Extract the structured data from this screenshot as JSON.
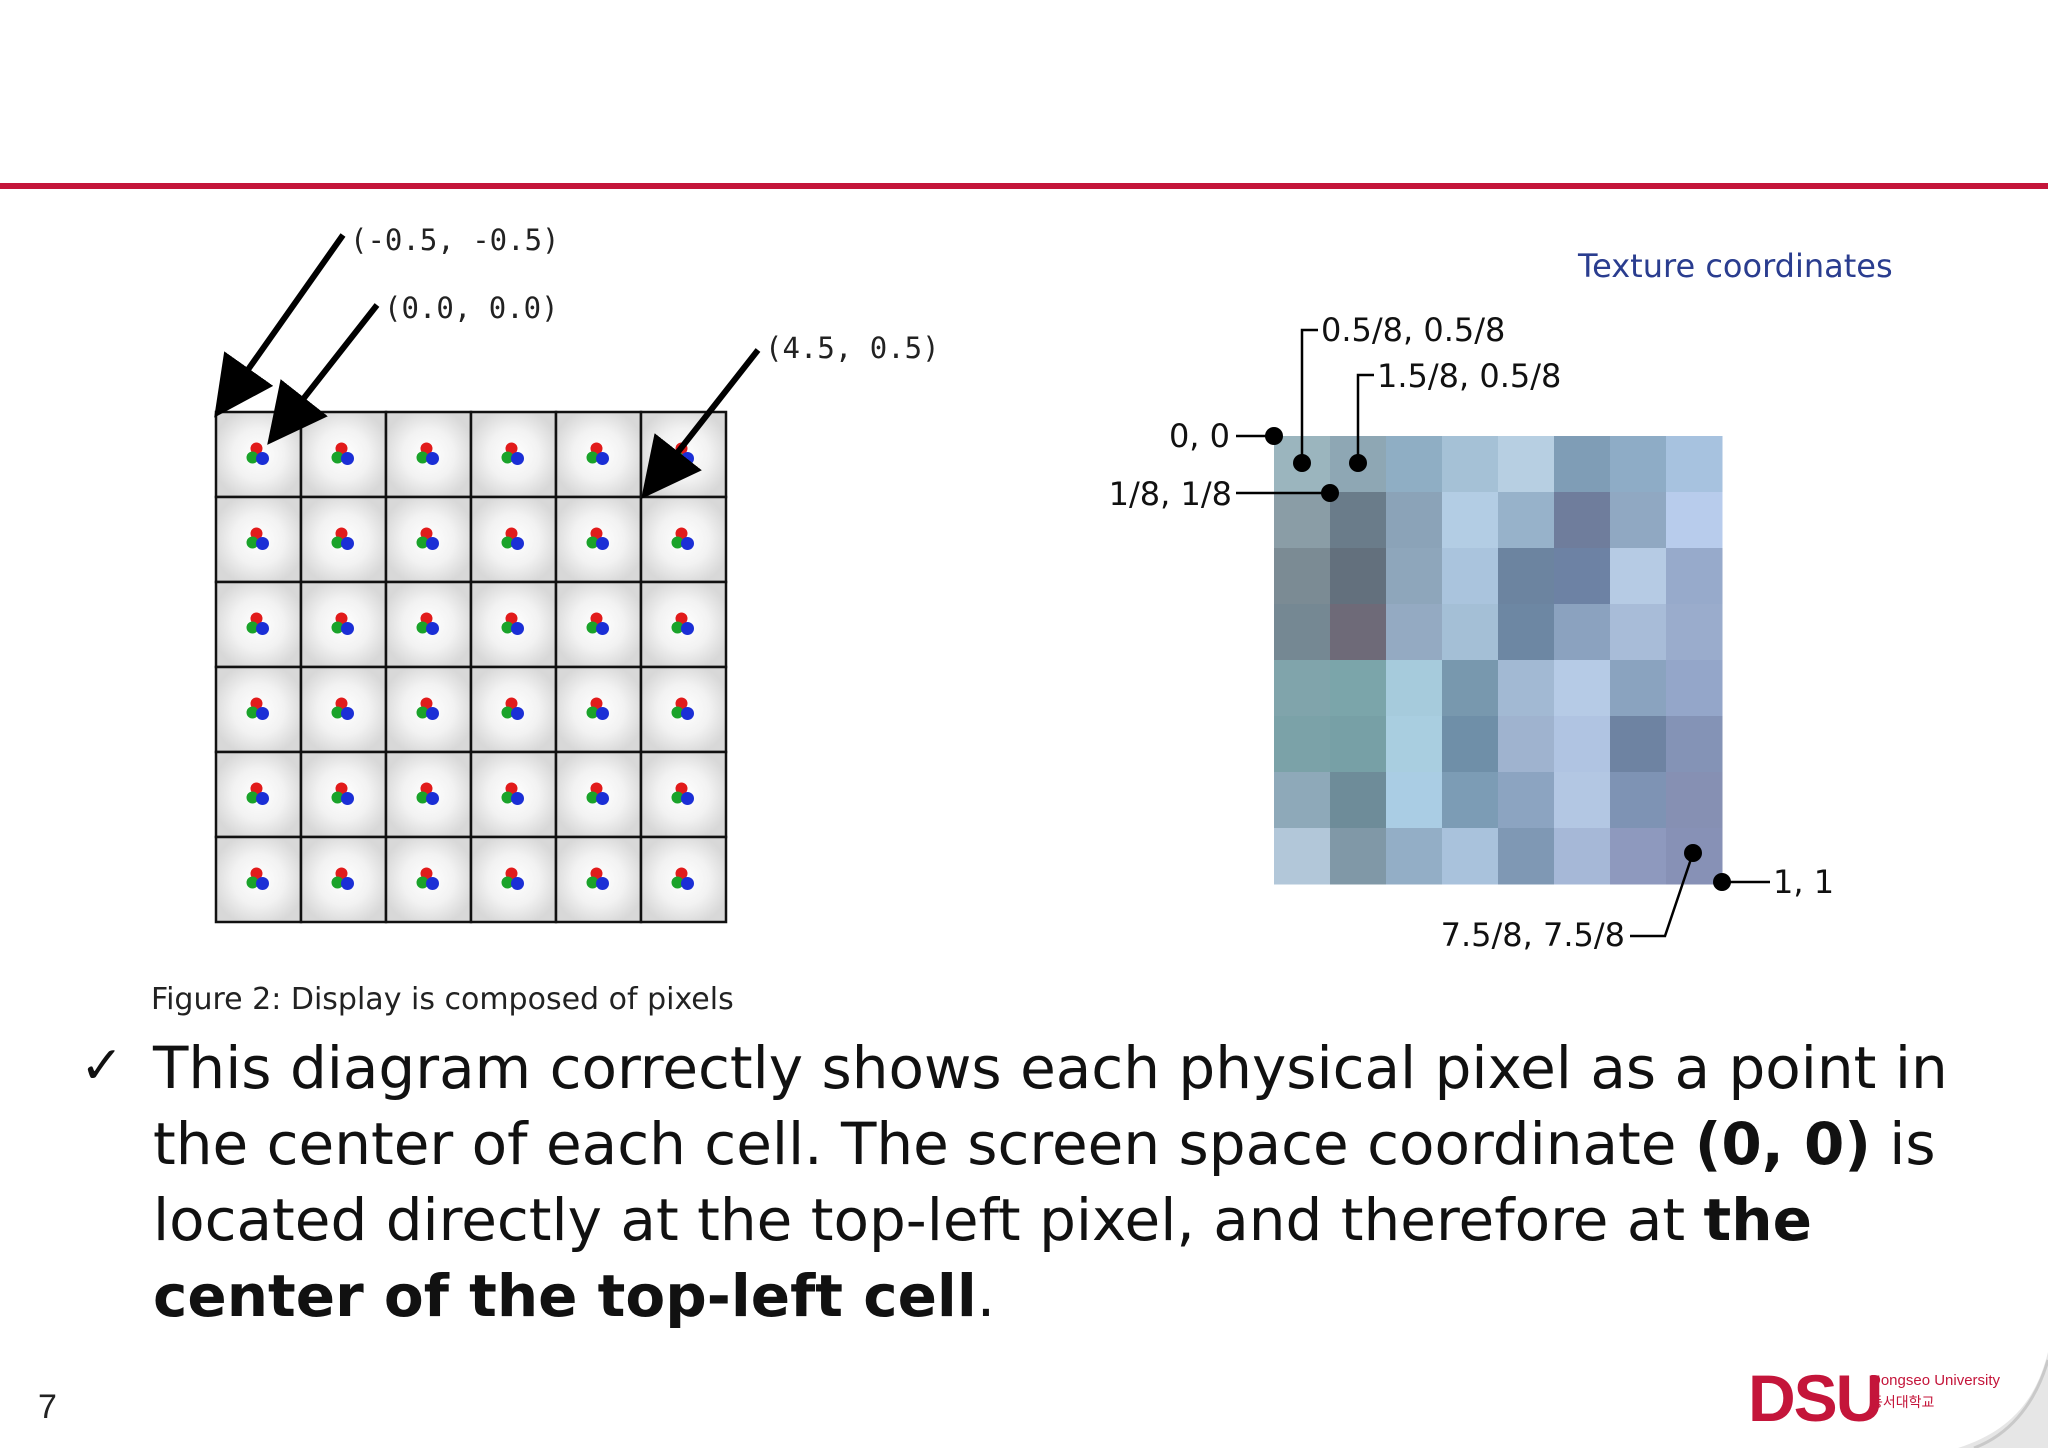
{
  "left_figure": {
    "coordinate_labels": [
      "(-0.5, -0.5)",
      "(0.0, 0.0)",
      "(4.5, 0.5)"
    ],
    "grid_rows": 6,
    "grid_cols": 6,
    "caption": "Figure 2: Display is composed of pixels"
  },
  "right_figure": {
    "title": "Texture coordinates",
    "labels": [
      "0.5/8, 0.5/8",
      "1.5/8, 0.5/8",
      "0, 0",
      "1/8, 1/8",
      "1, 1",
      "7.5/8, 7.5/8"
    ],
    "texture_colors": [
      [
        "#9bb5be",
        "#8ea7b4",
        "#8faec4",
        "#a5c1d6",
        "#b7cfe2",
        "#7f9db6",
        "#8eacc6",
        "#a7c2df"
      ],
      [
        "#8a9da6",
        "#6a7c8a",
        "#8ba3b8",
        "#b3cde4",
        "#97b2ca",
        "#6f7d9c",
        "#90a8c2",
        "#b8ccec"
      ],
      [
        "#7b8b94",
        "#63707d",
        "#8ea6bb",
        "#aac4dd",
        "#6c84a0",
        "#6d82a4",
        "#b6cbe4",
        "#97aacb"
      ],
      [
        "#758893",
        "#6e6a78",
        "#94aac2",
        "#a4bfd6",
        "#6d87a3",
        "#8ba2bf",
        "#a8bcd8",
        "#9aaccc"
      ],
      [
        "#80a4ab",
        "#7ba5aa",
        "#a6cbdc",
        "#7898ae",
        "#a2b9d3",
        "#b6cbe6",
        "#8aa3bf",
        "#94a6c9"
      ],
      [
        "#7ba2a8",
        "#77a0a6",
        "#a9cee0",
        "#6f8fa8",
        "#9fb3cf",
        "#b0c4e2",
        "#6e83a2",
        "#8493b6"
      ],
      [
        "#8ea9b9",
        "#6e8c99",
        "#aacde4",
        "#7c9cb5",
        "#8ca4c1",
        "#b3c7e3",
        "#7e93b4",
        "#8690b3"
      ],
      [
        "#b2c7d9",
        "#8098a7",
        "#93aec6",
        "#a9c2dc",
        "#7f98b4",
        "#a6b8d7",
        "#8e99be",
        "#8791b6"
      ]
    ]
  },
  "text": {
    "bullet": "✓",
    "line1": "This diagram correctly shows each physical pixel as a point in the center of each cell. The screen space coordinate ",
    "bold1": "(0, 0)",
    "line2": " is located directly at the top-left pixel, and therefore at ",
    "bold2": "the center of the top-left cell",
    "line3": "."
  },
  "footer": {
    "page_number": "7",
    "logo_text": "DSU",
    "logo_en": "Dongseo University",
    "logo_kr": "동서대학교"
  },
  "colors": {
    "accent": "#c4153a",
    "title_blue": "#2a3d8f"
  }
}
